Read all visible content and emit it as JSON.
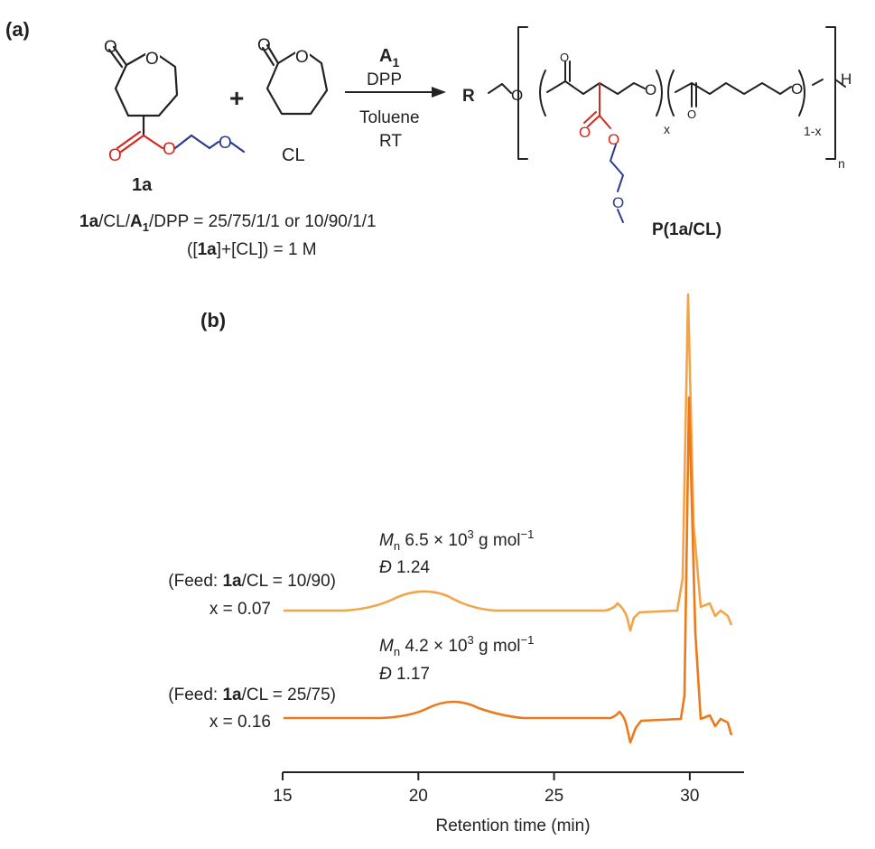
{
  "panel_a": {
    "label": "(a)",
    "monomer_1a_name": "1a",
    "plus": "+",
    "cl_name": "CL",
    "arrow_above": {
      "a1": "A",
      "a1_sub": "1",
      "dpp": "DPP"
    },
    "arrow_below": {
      "solvent": "Toluene",
      "temp": "RT"
    },
    "product": {
      "r": "R",
      "o": "O",
      "h": "H",
      "x": "x",
      "one_minus_x": "1-x",
      "n": "n",
      "name": "P(1a/CL)"
    },
    "conditions": {
      "ratio_1a": "1a",
      "ratio_cl": "/CL/",
      "ratio_a": "A",
      "ratio_a_sub": "1",
      "ratio_rest": "/DPP = 25/75/1/1 or 10/90/1/1",
      "conc_open": "([",
      "conc_1a": "1a",
      "conc_rest": "]+[CL]) = 1 M"
    }
  },
  "panel_b": {
    "label": "(b)",
    "trace_top": {
      "feed_prefix": "(Feed: ",
      "feed_bold": "1a",
      "feed_suffix": "/CL = 10/90)",
      "x_label": "x = 0.07",
      "mn_symbol": "M",
      "mn_sub": "n",
      "mn_value": " 6.5  × 10",
      "mn_exp": "3",
      "mn_unit": " g mol",
      "mn_unit_exp": "−1",
      "d_symbol": "Đ",
      "d_value": " 1.24",
      "color": "#f4a448"
    },
    "trace_bottom": {
      "feed_prefix": "(Feed: ",
      "feed_bold": "1a",
      "feed_suffix": "/CL = 25/75)",
      "x_label": "x = 0.16",
      "mn_symbol": "M",
      "mn_sub": "n",
      "mn_value": " 4.2  × 10",
      "mn_exp": "3",
      "mn_unit": " g mol",
      "mn_unit_exp": "−1",
      "d_symbol": "Đ",
      "d_value": " 1.17",
      "color": "#ec7a1c"
    },
    "axis": {
      "xlabel": "Retention time (min)",
      "ticks": [
        "15",
        "20",
        "25",
        "30"
      ],
      "tick_values": [
        15,
        20,
        25,
        30
      ],
      "range": [
        15,
        32
      ]
    }
  },
  "colors": {
    "ester": "#d2281e",
    "ether": "#2b3c8f",
    "bond": "#222222"
  }
}
